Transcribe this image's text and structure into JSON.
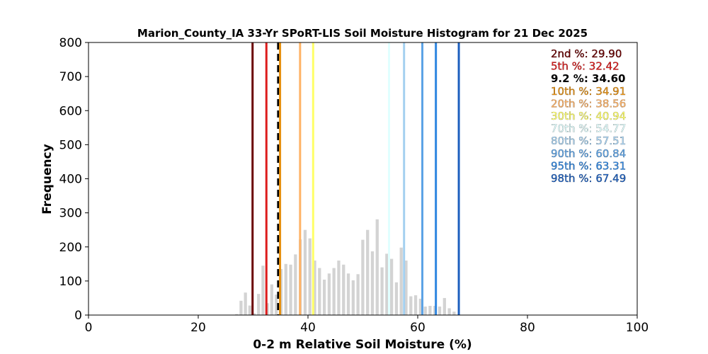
{
  "chart_data": {
    "type": "bar",
    "title": "Marion_County_IA 33-Yr SPoRT-LIS Soil Moisture Histogram for 21 Dec 2025",
    "xlabel": "0-2 m Relative Soil Moisture (%)",
    "ylabel": "Frequency",
    "xlim": [
      0,
      100
    ],
    "ylim": [
      0,
      800
    ],
    "xticks": [
      0,
      20,
      40,
      60,
      80,
      100
    ],
    "yticks": [
      0,
      100,
      200,
      300,
      400,
      500,
      600,
      700,
      800
    ],
    "bar_color": "#d3d3d3",
    "bins": [
      {
        "x": 27.0,
        "count": 3
      },
      {
        "x": 27.8,
        "count": 42
      },
      {
        "x": 28.6,
        "count": 66
      },
      {
        "x": 29.4,
        "count": 28
      },
      {
        "x": 30.2,
        "count": 5
      },
      {
        "x": 31.0,
        "count": 62
      },
      {
        "x": 31.8,
        "count": 145
      },
      {
        "x": 32.6,
        "count": 35
      },
      {
        "x": 33.4,
        "count": 90
      },
      {
        "x": 34.2,
        "count": 60
      },
      {
        "x": 35.0,
        "count": 135
      },
      {
        "x": 35.8,
        "count": 150
      },
      {
        "x": 36.6,
        "count": 148
      },
      {
        "x": 37.4,
        "count": 178
      },
      {
        "x": 38.2,
        "count": 222
      },
      {
        "x": 39.0,
        "count": 250
      },
      {
        "x": 39.8,
        "count": 225
      },
      {
        "x": 40.6,
        "count": 160
      },
      {
        "x": 41.4,
        "count": 138
      },
      {
        "x": 42.2,
        "count": 104
      },
      {
        "x": 43.0,
        "count": 122
      },
      {
        "x": 43.8,
        "count": 138
      },
      {
        "x": 44.6,
        "count": 160
      },
      {
        "x": 45.4,
        "count": 148
      },
      {
        "x": 46.2,
        "count": 122
      },
      {
        "x": 47.0,
        "count": 102
      },
      {
        "x": 47.8,
        "count": 120
      },
      {
        "x": 48.6,
        "count": 221
      },
      {
        "x": 49.4,
        "count": 250
      },
      {
        "x": 50.2,
        "count": 187
      },
      {
        "x": 51.0,
        "count": 281
      },
      {
        "x": 51.8,
        "count": 140
      },
      {
        "x": 52.6,
        "count": 180
      },
      {
        "x": 53.4,
        "count": 165
      },
      {
        "x": 54.2,
        "count": 96
      },
      {
        "x": 55.0,
        "count": 198
      },
      {
        "x": 55.8,
        "count": 160
      },
      {
        "x": 56.6,
        "count": 55
      },
      {
        "x": 57.4,
        "count": 58
      },
      {
        "x": 58.2,
        "count": 48
      },
      {
        "x": 59.0,
        "count": 25
      },
      {
        "x": 59.8,
        "count": 27
      },
      {
        "x": 60.6,
        "count": 27
      },
      {
        "x": 61.4,
        "count": 25
      },
      {
        "x": 62.2,
        "count": 50
      },
      {
        "x": 63.0,
        "count": 20
      },
      {
        "x": 63.8,
        "count": 10
      }
    ],
    "percentiles": [
      {
        "label": "2nd %: 29.90",
        "value": 29.9,
        "color": "#6b0000",
        "dashed": false
      },
      {
        "label": "5th %: 32.42",
        "value": 32.42,
        "color": "#dd1c1c",
        "dashed": false
      },
      {
        "label": "9.2 %: 34.60",
        "value": 34.6,
        "color": "#000000",
        "dashed": true
      },
      {
        "label": "10th %: 34.91",
        "value": 34.91,
        "color": "#e69010",
        "dashed": false
      },
      {
        "label": "20th %: 38.56",
        "value": 38.56,
        "color": "#ffb366",
        "dashed": false
      },
      {
        "label": "30th %: 40.94",
        "value": 40.94,
        "color": "#ffff66",
        "dashed": false
      },
      {
        "label": "70th %: 54.77",
        "value": 54.77,
        "color": "#e0ffff",
        "dashed": false
      },
      {
        "label": "80th %: 57.51",
        "value": 57.51,
        "color": "#a4d0f0",
        "dashed": false
      },
      {
        "label": "90th %: 60.84",
        "value": 60.84,
        "color": "#5ca3e6",
        "dashed": false
      },
      {
        "label": "95th %: 63.31",
        "value": 63.31,
        "color": "#2f86e0",
        "dashed": false
      },
      {
        "label": "98th %: 67.49",
        "value": 67.49,
        "color": "#1d5fbe",
        "dashed": false
      }
    ],
    "grid": false
  }
}
